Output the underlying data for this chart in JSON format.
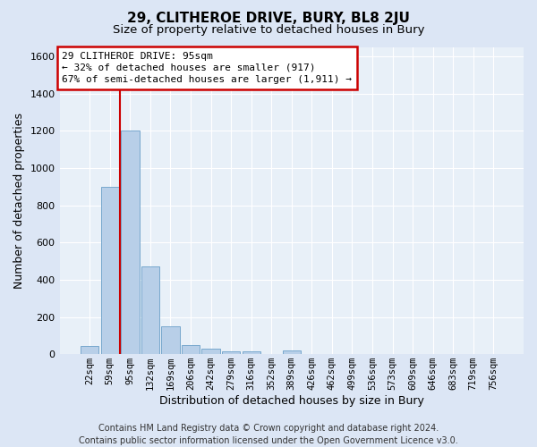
{
  "title": "29, CLITHEROE DRIVE, BURY, BL8 2JU",
  "subtitle": "Size of property relative to detached houses in Bury",
  "xlabel": "Distribution of detached houses by size in Bury",
  "ylabel": "Number of detached properties",
  "footer_line1": "Contains HM Land Registry data © Crown copyright and database right 2024.",
  "footer_line2": "Contains public sector information licensed under the Open Government Licence v3.0.",
  "annotation_line1": "29 CLITHEROE DRIVE: 95sqm",
  "annotation_line2": "← 32% of detached houses are smaller (917)",
  "annotation_line3": "67% of semi-detached houses are larger (1,911) →",
  "bar_labels": [
    "22sqm",
    "59sqm",
    "95sqm",
    "132sqm",
    "169sqm",
    "206sqm",
    "242sqm",
    "279sqm",
    "316sqm",
    "352sqm",
    "389sqm",
    "426sqm",
    "462sqm",
    "499sqm",
    "536sqm",
    "573sqm",
    "609sqm",
    "646sqm",
    "683sqm",
    "719sqm",
    "756sqm"
  ],
  "bar_values": [
    45,
    900,
    1200,
    470,
    150,
    48,
    30,
    15,
    15,
    0,
    20,
    0,
    0,
    0,
    0,
    0,
    0,
    0,
    0,
    0,
    0
  ],
  "bar_color": "#b8cfe8",
  "bar_edge_color": "#6a9fc8",
  "highlight_bar_index": 2,
  "highlight_color": "#cc0000",
  "ylim": [
    0,
    1650
  ],
  "yticks": [
    0,
    200,
    400,
    600,
    800,
    1000,
    1200,
    1400,
    1600
  ],
  "bg_color": "#dce6f5",
  "plot_bg_color": "#e8f0f8",
  "grid_color": "#ffffff",
  "title_fontsize": 11,
  "subtitle_fontsize": 9.5,
  "axis_label_fontsize": 9,
  "tick_fontsize": 7.5,
  "annotation_fontsize": 8,
  "footer_fontsize": 7
}
